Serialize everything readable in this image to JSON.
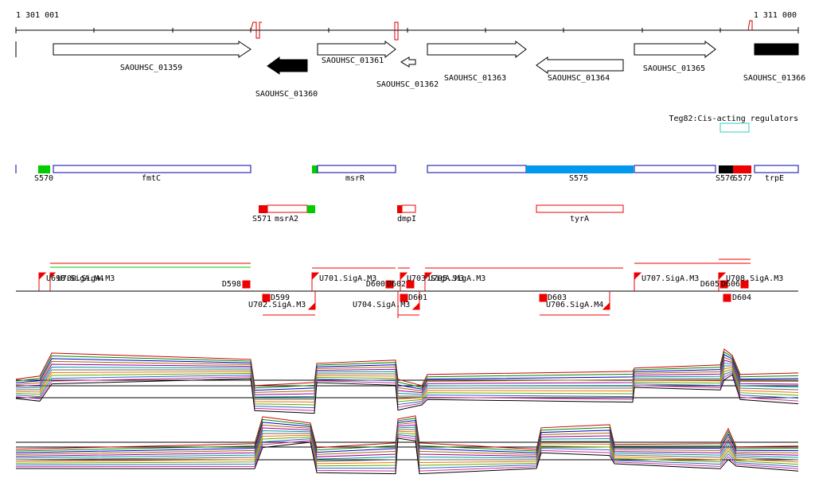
{
  "ruler": {
    "start": "1 301 001",
    "end": "1 311 000"
  },
  "genes": [
    "SAOUHSC_01359",
    "SAOUHSC_01360",
    "SAOUHSC_01361",
    "SAOUHSC_01362",
    "SAOUHSC_01363",
    "SAOUHSC_01364",
    "SAOUHSC_01365",
    "SAOUHSC_01366"
  ],
  "regulator": "Teg82:Cis-acting regulators",
  "features": [
    "S570",
    "fmtC",
    "msrR",
    "S575",
    "S576",
    "S577",
    "trpE"
  ],
  "features2": [
    "S571",
    "msrA2",
    "dmpI",
    "tyrA"
  ],
  "promoters": [
    "U698.SigA.M4",
    "U700.SigA.M3",
    "D598",
    "U701.SigA.M3",
    "D600",
    "D602",
    "U703.SigA.M3",
    "U705.SigA.M3",
    "U707.SigA.M3",
    "D605",
    "D606",
    "U708.SigA.M3",
    "D599",
    "U702.SigA.M3",
    "U704.SigA.M3",
    "D601",
    "D603",
    "U706.SigA.M4",
    "D604"
  ]
}
